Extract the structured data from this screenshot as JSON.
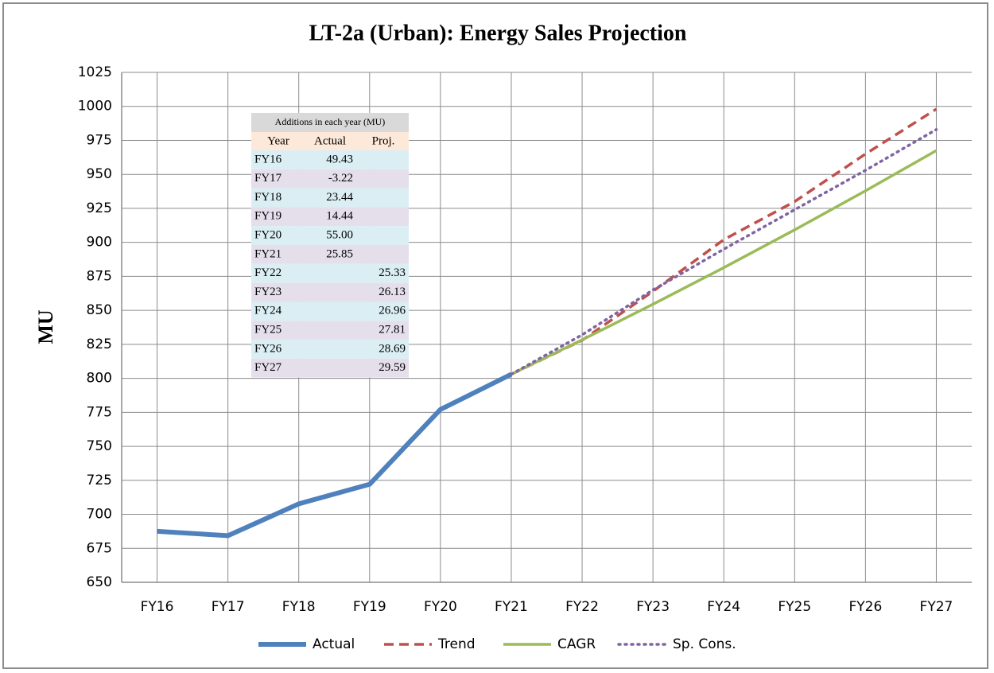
{
  "chart_data": {
    "type": "line",
    "title": "LT-2a (Urban): Energy Sales Projection",
    "y_label": "MU",
    "categories": [
      "FY16",
      "FY17",
      "FY18",
      "FY19",
      "FY20",
      "FY21",
      "FY22",
      "FY23",
      "FY24",
      "FY25",
      "FY26",
      "FY27"
    ],
    "series": [
      {
        "name": "Actual",
        "color": "#4f81bd",
        "style": "solid",
        "width": 6,
        "values": [
          687.5,
          684.3,
          707.7,
          722.1,
          777.1,
          803.0,
          null,
          null,
          null,
          null,
          null,
          null
        ]
      },
      {
        "name": "Trend",
        "color": "#c0504d",
        "style": "dashed",
        "width": 3.5,
        "values": [
          null,
          null,
          null,
          null,
          null,
          803.0,
          828,
          864,
          902,
          930,
          965,
          998
        ]
      },
      {
        "name": "CAGR",
        "color": "#9bbb59",
        "style": "solid",
        "width": 3.5,
        "values": [
          null,
          null,
          null,
          null,
          null,
          803.0,
          828.3,
          854.5,
          881.4,
          909.2,
          937.9,
          967.5
        ]
      },
      {
        "name": "Sp. Cons.",
        "color": "#8064a2",
        "style": "dotted",
        "width": 3.5,
        "values": [
          null,
          null,
          null,
          null,
          null,
          803.0,
          832,
          865,
          895,
          924,
          953,
          983
        ]
      }
    ],
    "ylim": [
      650,
      1025
    ],
    "yticks": [
      650,
      675,
      700,
      725,
      750,
      775,
      800,
      825,
      850,
      875,
      900,
      925,
      950,
      975,
      1000,
      1025
    ],
    "grid": true,
    "legend": "bottom"
  },
  "table": {
    "title": "Additions in each year (MU)",
    "header": [
      "Year",
      "Actual",
      "Proj."
    ],
    "rows": [
      {
        "year": "FY16",
        "actual": "49.43"
      },
      {
        "year": "FY17",
        "actual": "-3.22"
      },
      {
        "year": "FY18",
        "actual": "23.44"
      },
      {
        "year": "FY19",
        "actual": "14.44"
      },
      {
        "year": "FY20",
        "actual": "55.00"
      },
      {
        "year": "FY21",
        "actual": "25.85"
      },
      {
        "year": "FY22",
        "proj": "25.33"
      },
      {
        "year": "FY23",
        "proj": "26.13"
      },
      {
        "year": "FY24",
        "proj": "26.96"
      },
      {
        "year": "FY25",
        "proj": "27.81"
      },
      {
        "year": "FY26",
        "proj": "28.69"
      },
      {
        "year": "FY27",
        "proj": "29.59"
      }
    ]
  }
}
